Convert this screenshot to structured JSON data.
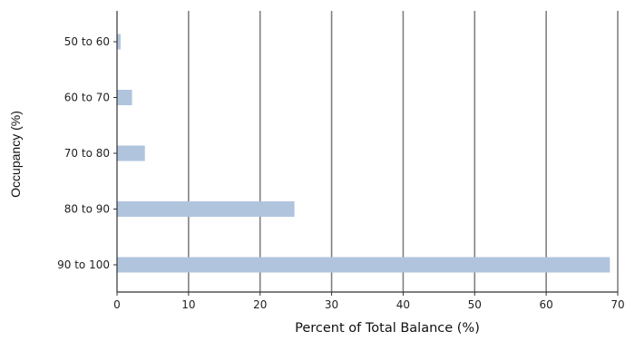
{
  "chart_data": {
    "type": "bar",
    "orientation": "horizontal",
    "title": "",
    "xlabel": "Percent of Total Balance (%)",
    "ylabel": "Occupancy (%)",
    "categories": [
      "50 to 60",
      "60 to 70",
      "70 to 80",
      "80 to 90",
      "90 to 100"
    ],
    "values": [
      0.5,
      2.1,
      3.9,
      24.8,
      68.9
    ],
    "xlim": [
      0,
      70
    ],
    "xticks": [
      "0",
      "10",
      "20",
      "30",
      "40",
      "50",
      "60",
      "70"
    ],
    "grid": "vertical",
    "legend": "none",
    "bar_color": "#b0c4de",
    "grid_color": "#808080",
    "axis_color": "#333333"
  }
}
